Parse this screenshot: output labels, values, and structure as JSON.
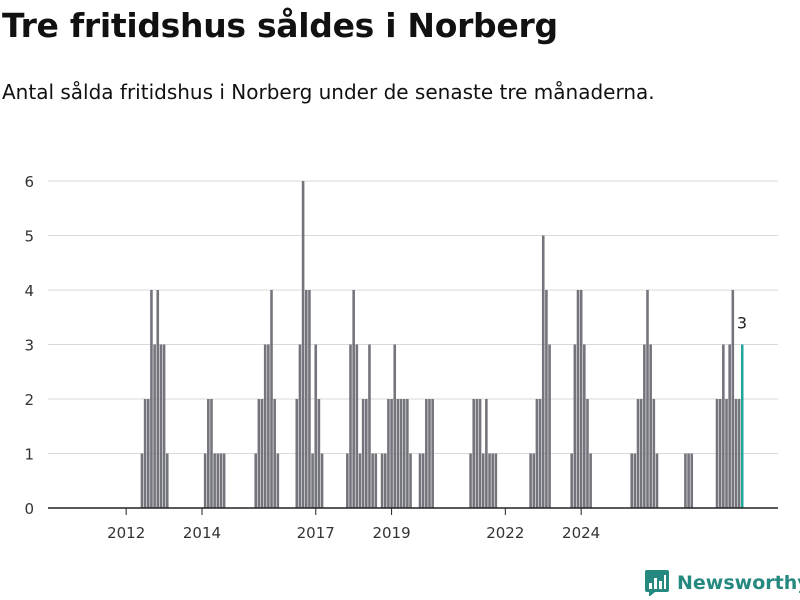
{
  "header": {
    "title": "Tre fritidshus såldes i Norberg",
    "subtitle": "Antal sålda fritidshus i Norberg under de senaste tre månaderna."
  },
  "brand": {
    "name": "Newsworthy",
    "logo_icon": "newsworthy-chart-logo-icon",
    "color": "#26897f"
  },
  "colors": {
    "bar": "#74747c",
    "highlight": "#24a59c",
    "grid": "#d9d9d9",
    "axis": "#222222"
  },
  "chart_data": {
    "type": "bar",
    "title": "Tre fritidshus såldes i Norberg",
    "subtitle": "Antal sålda fritidshus i Norberg under de senaste tre månaderna.",
    "xlabel": "",
    "ylabel": "",
    "ylim": [
      0,
      6
    ],
    "yticks": [
      0,
      1,
      2,
      3,
      4,
      5,
      6
    ],
    "xticks": [
      "2012",
      "2014",
      "2017",
      "2019",
      "2022",
      "2024"
    ],
    "grid": true,
    "period": "rolling three-month total, monthly",
    "x_start": "2011-01",
    "values": [
      0,
      0,
      0,
      0,
      0,
      0,
      0,
      0,
      0,
      0,
      0,
      0,
      0,
      0,
      0,
      0,
      0,
      0,
      0,
      0,
      0,
      0,
      0,
      1,
      2,
      2,
      4,
      3,
      4,
      3,
      3,
      1,
      0,
      0,
      0,
      0,
      0,
      0,
      0,
      0,
      0,
      0,
      0,
      1,
      2,
      2,
      1,
      1,
      1,
      1,
      0,
      0,
      0,
      0,
      0,
      0,
      0,
      0,
      0,
      1,
      2,
      2,
      3,
      3,
      4,
      2,
      1,
      0,
      0,
      0,
      0,
      0,
      2,
      3,
      6,
      4,
      4,
      1,
      3,
      2,
      1,
      0,
      0,
      0,
      0,
      0,
      0,
      0,
      1,
      3,
      4,
      3,
      1,
      2,
      2,
      3,
      1,
      1,
      0,
      1,
      1,
      2,
      2,
      3,
      2,
      2,
      2,
      2,
      1,
      0,
      0,
      1,
      1,
      2,
      2,
      2,
      0,
      0,
      0,
      0,
      0,
      0,
      0,
      0,
      0,
      0,
      0,
      1,
      2,
      2,
      2,
      1,
      2,
      1,
      1,
      1,
      0,
      0,
      0,
      0,
      0,
      0,
      0,
      0,
      0,
      0,
      1,
      1,
      2,
      2,
      5,
      4,
      3,
      0,
      0,
      0,
      0,
      0,
      0,
      1,
      3,
      4,
      4,
      3,
      2,
      1,
      0,
      0,
      0,
      0,
      0,
      0,
      0,
      0,
      0,
      0,
      0,
      0,
      1,
      1,
      2,
      2,
      3,
      4,
      3,
      2,
      1,
      0,
      0,
      0,
      0,
      0,
      0,
      0,
      0,
      1,
      1,
      1,
      0,
      0,
      0,
      0,
      0,
      0,
      0,
      2,
      2,
      3,
      2,
      3,
      4,
      2,
      2,
      3
    ],
    "last_value_label": "3"
  }
}
